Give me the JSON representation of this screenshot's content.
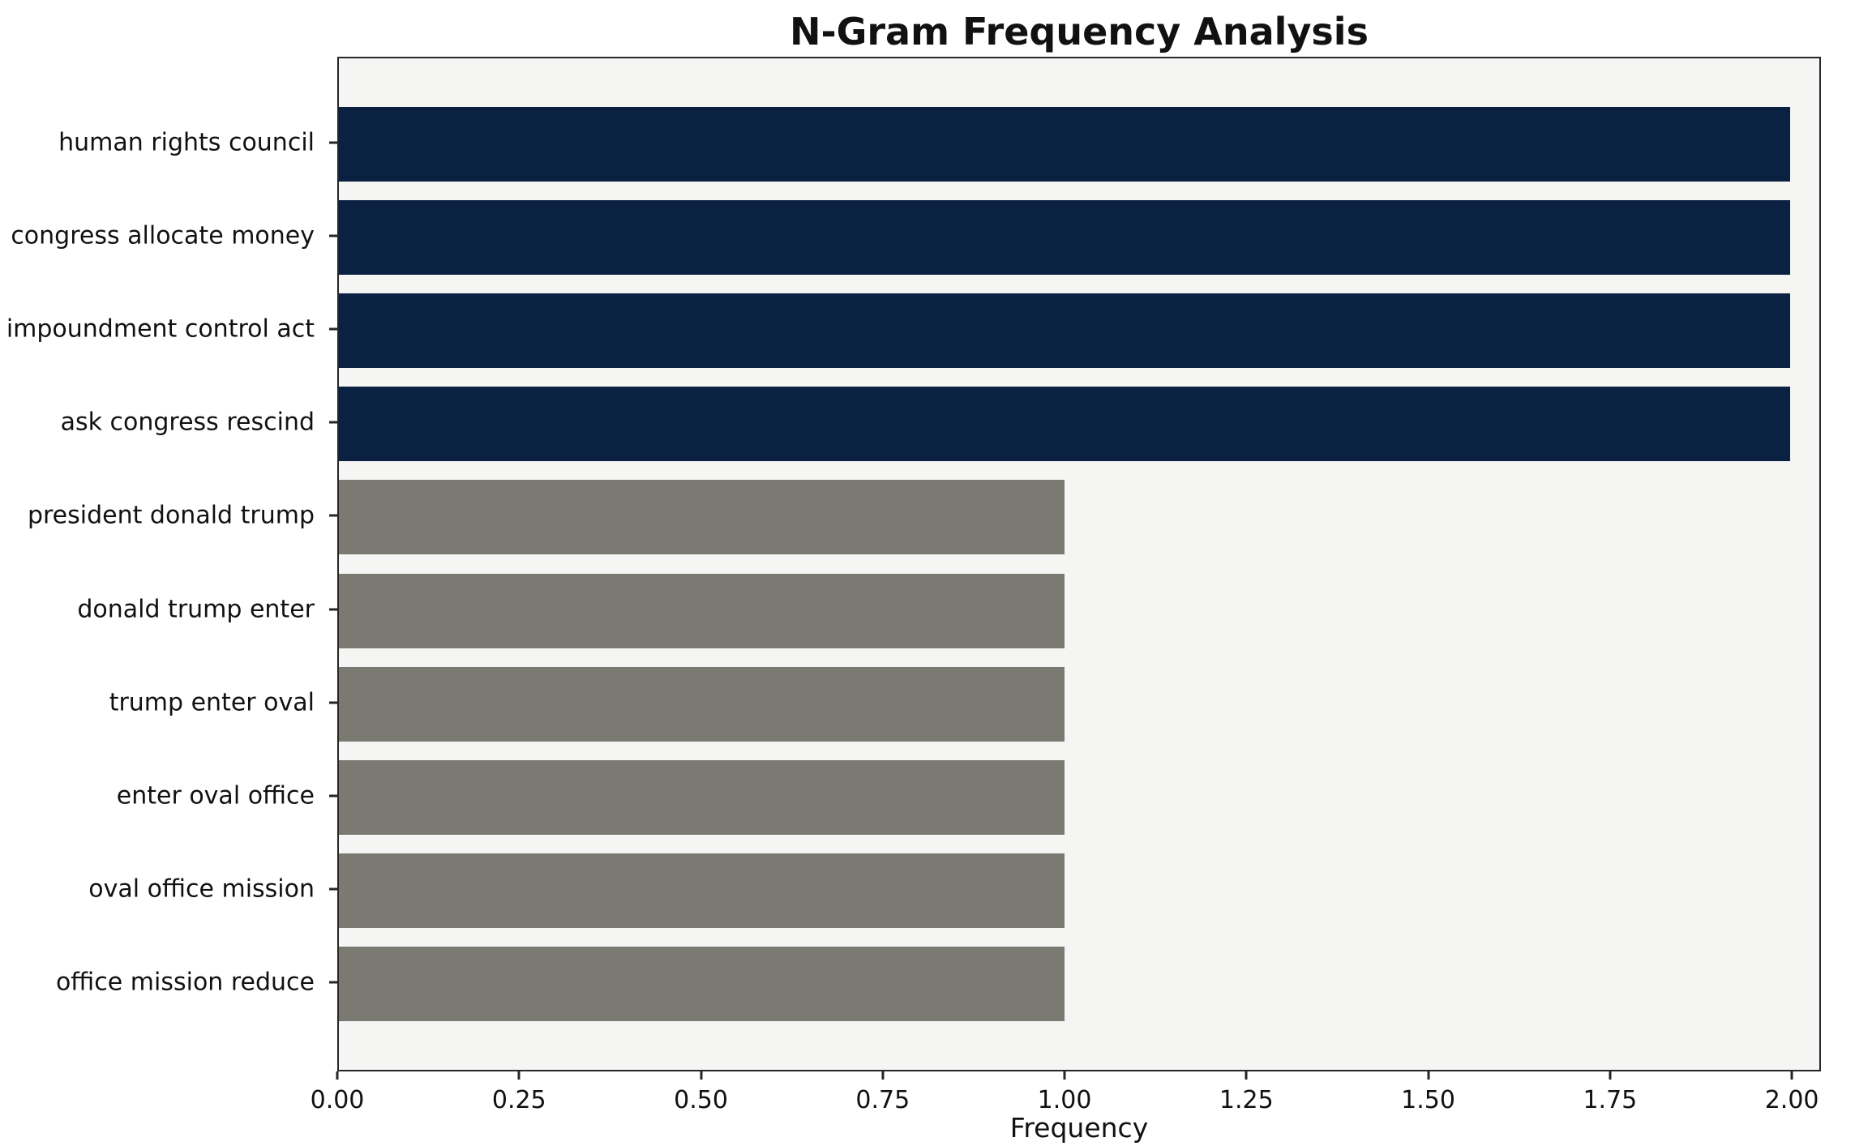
{
  "chart_data": {
    "type": "bar",
    "orientation": "horizontal",
    "title": "N-Gram Frequency Analysis",
    "xlabel": "Frequency",
    "ylabel": "",
    "categories": [
      "human rights council",
      "congress allocate money",
      "impoundment control act",
      "ask congress rescind",
      "president donald trump",
      "donald trump enter",
      "trump enter oval",
      "enter oval office",
      "oval office mission",
      "office mission reduce"
    ],
    "values": [
      2,
      2,
      2,
      2,
      1,
      1,
      1,
      1,
      1,
      1
    ],
    "bar_colors": [
      "#0b2142",
      "#0b2142",
      "#0b2142",
      "#0b2142",
      "#7a7a72",
      "#7a7a72",
      "#7a7a72",
      "#7a7a72",
      "#7a7a72",
      "#7a7a72"
    ],
    "xlim": [
      0,
      2.04
    ],
    "xticks": [
      0,
      0.25,
      0.5,
      0.75,
      1.0,
      1.25,
      1.5,
      1.75,
      2.0
    ],
    "xtick_labels": [
      "0.00",
      "0.25",
      "0.50",
      "0.75",
      "1.00",
      "1.25",
      "1.50",
      "1.75",
      "2.00"
    ],
    "grid": false,
    "legend": null,
    "colors": {
      "navy": "#0b2142",
      "gray": "#7a7a72",
      "plot_background": "#f5f5f3",
      "spine": "#262626"
    }
  }
}
